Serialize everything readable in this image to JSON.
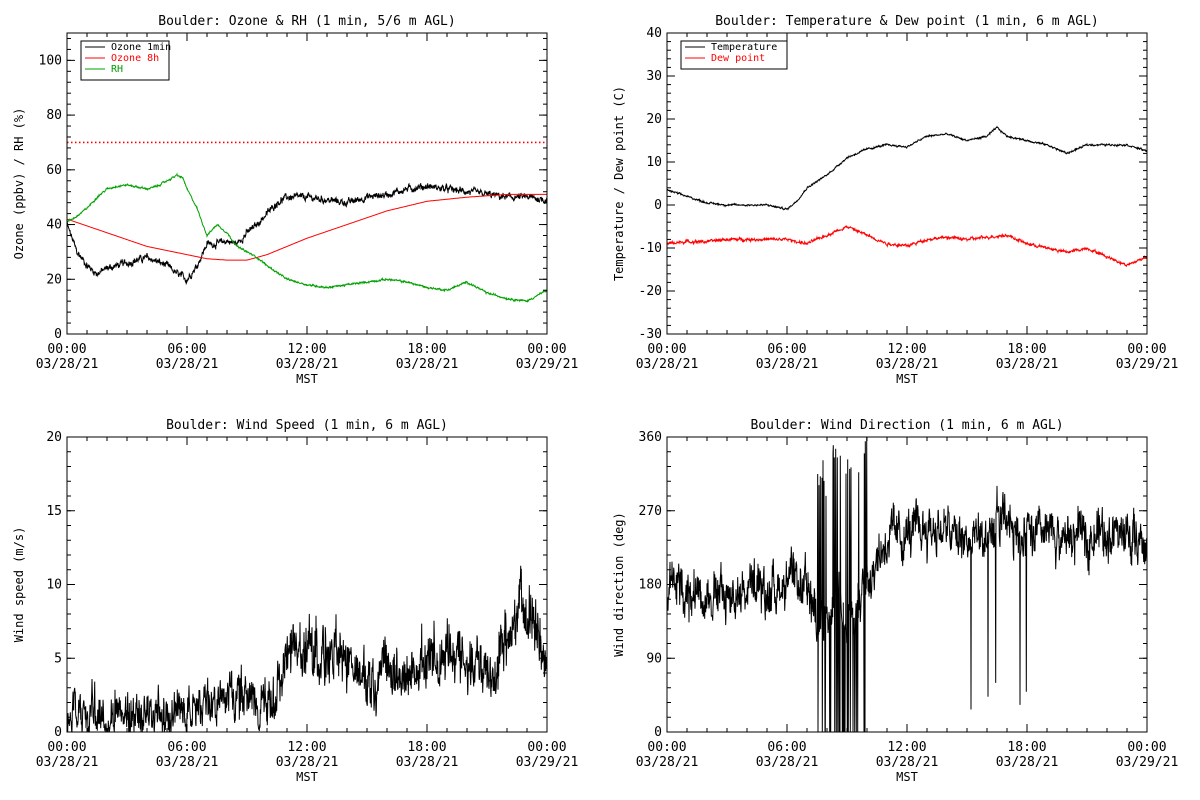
{
  "chart_data": [
    {
      "id": "ozone_rh",
      "type": "line",
      "title": "Boulder: Ozone & RH (1 min, 5/6 m AGL)",
      "ylabel": "Ozone (ppbv) / RH (%)",
      "xlabel": "MST",
      "ylim": [
        0,
        110
      ],
      "yticks": [
        "0",
        "20",
        "40",
        "60",
        "80",
        "100"
      ],
      "xlim": [
        0,
        24
      ],
      "xticks": [
        {
          "time": "00:00",
          "date": "03/28/21"
        },
        {
          "time": "06:00",
          "date": "03/28/21"
        },
        {
          "time": "12:00",
          "date": "03/28/21"
        },
        {
          "time": "18:00",
          "date": "03/28/21"
        },
        {
          "time": "00:00",
          "date": "03/29/21"
        }
      ],
      "legend": "top-left",
      "reference_line": {
        "y": 70,
        "style": "dotted",
        "color": "#ff0000"
      },
      "series": [
        {
          "name": "Ozone 1min",
          "color": "#000000",
          "noise": 1.5,
          "x": [
            0,
            0.5,
            1,
            1.5,
            2,
            3,
            4,
            5,
            5.5,
            6,
            6.5,
            7,
            7.5,
            8,
            8.5,
            9,
            9.5,
            10,
            10.5,
            11,
            12,
            13,
            14,
            15,
            16,
            17,
            18,
            19,
            20,
            21,
            22,
            23,
            24
          ],
          "y": [
            40,
            30,
            25,
            22,
            24,
            26,
            28,
            25,
            22,
            20,
            25,
            33,
            33,
            34,
            33,
            37,
            40,
            44,
            48,
            50,
            50,
            49,
            48,
            50,
            51,
            53,
            54,
            53,
            52,
            51,
            50,
            50,
            49
          ]
        },
        {
          "name": "Ozone 8h",
          "color": "#ff0000",
          "noise": 0,
          "x": [
            0,
            2,
            4,
            6,
            7,
            8,
            9,
            10,
            12,
            14,
            16,
            18,
            20,
            22,
            24
          ],
          "y": [
            42,
            37,
            32,
            29,
            27.5,
            27,
            27,
            29,
            35,
            40,
            45,
            48.5,
            50,
            51,
            51
          ]
        },
        {
          "name": "RH",
          "color": "#00a000",
          "noise": 0.4,
          "x": [
            0,
            0.5,
            1,
            1.5,
            2,
            2.5,
            3,
            4,
            4.5,
            5,
            5.5,
            5.8,
            6,
            6.5,
            7,
            7.5,
            8,
            8.5,
            9,
            9.5,
            10,
            11,
            12,
            13,
            14,
            15,
            16,
            17,
            18,
            19,
            20,
            21,
            22,
            23,
            24
          ],
          "y": [
            41,
            43,
            46,
            50,
            53,
            54,
            54.5,
            53,
            54,
            56,
            58,
            57,
            53,
            46,
            36,
            40,
            37,
            32,
            30,
            28,
            25,
            20,
            18,
            17,
            18,
            19,
            20,
            19,
            17,
            16,
            19,
            15,
            13,
            12,
            16
          ]
        }
      ]
    },
    {
      "id": "temp_dew",
      "type": "line",
      "title": "Boulder: Temperature & Dew point (1 min, 6 m AGL)",
      "ylabel": "Temperature / Dew point (C)",
      "xlabel": "MST",
      "ylim": [
        -30,
        40
      ],
      "yticks": [
        "-30",
        "-20",
        "-10",
        "0",
        "10",
        "20",
        "30",
        "40"
      ],
      "xlim": [
        0,
        24
      ],
      "xticks": [
        {
          "time": "00:00",
          "date": "03/28/21"
        },
        {
          "time": "06:00",
          "date": "03/28/21"
        },
        {
          "time": "12:00",
          "date": "03/28/21"
        },
        {
          "time": "18:00",
          "date": "03/28/21"
        },
        {
          "time": "00:00",
          "date": "03/29/21"
        }
      ],
      "legend": "top-left",
      "series": [
        {
          "name": "Temperature",
          "color": "#000000",
          "noise": 0.25,
          "x": [
            0,
            1,
            2,
            3,
            4,
            5,
            5.5,
            6,
            6.5,
            7,
            8,
            9,
            10,
            11,
            12,
            13,
            14,
            15,
            16,
            16.5,
            17,
            18,
            19,
            20,
            21,
            22,
            23,
            24
          ],
          "y": [
            3.5,
            2,
            0.5,
            0,
            0,
            0,
            -0.5,
            -1,
            1,
            4,
            7,
            11,
            13,
            14,
            13.5,
            16,
            16.5,
            15,
            16,
            18,
            16,
            15,
            14,
            12,
            14,
            14,
            14,
            12.5
          ]
        },
        {
          "name": "Dew point",
          "color": "#ff0000",
          "noise": 0.4,
          "x": [
            0,
            1,
            2,
            3,
            4,
            5,
            6,
            7,
            8,
            9,
            10,
            11,
            12,
            13,
            14,
            15,
            16,
            17,
            18,
            19,
            20,
            21,
            22,
            23,
            24
          ],
          "y": [
            -9,
            -8.5,
            -8.5,
            -8,
            -8,
            -8,
            -8,
            -9,
            -7,
            -5,
            -7,
            -9,
            -9.5,
            -8,
            -7.5,
            -8,
            -7.5,
            -7,
            -9,
            -10,
            -11,
            -10,
            -12,
            -14,
            -12
          ]
        }
      ]
    },
    {
      "id": "wind_speed",
      "type": "line",
      "title": "Boulder: Wind Speed (1 min, 6 m AGL)",
      "ylabel": "Wind speed (m/s)",
      "xlabel": "MST",
      "ylim": [
        0,
        20
      ],
      "yticks": [
        "0",
        "5",
        "10",
        "15",
        "20"
      ],
      "xlim": [
        0,
        24
      ],
      "xticks": [
        {
          "time": "00:00",
          "date": "03/28/21"
        },
        {
          "time": "06:00",
          "date": "03/28/21"
        },
        {
          "time": "12:00",
          "date": "03/28/21"
        },
        {
          "time": "18:00",
          "date": "03/28/21"
        },
        {
          "time": "00:00",
          "date": "03/29/21"
        }
      ],
      "series": [
        {
          "name": "",
          "color": "#000000",
          "noise": 1.8,
          "x": [
            0,
            2,
            4,
            6,
            7,
            8,
            9,
            10,
            10.5,
            11,
            11.5,
            12,
            13,
            14,
            15,
            16,
            17,
            18,
            19,
            20,
            21,
            22,
            22.5,
            23,
            23.5,
            24
          ],
          "y": [
            1,
            1,
            1,
            1,
            1.5,
            2,
            2,
            1.5,
            2,
            4,
            5,
            5,
            4.5,
            4,
            3,
            3,
            3,
            4,
            4.5,
            4.5,
            3,
            5,
            7,
            8,
            6,
            4
          ]
        }
      ]
    },
    {
      "id": "wind_dir",
      "type": "line",
      "title": "Boulder: Wind Direction (1 min, 6 m AGL)",
      "ylabel": "Wind direction (deg)",
      "xlabel": "MST",
      "ylim": [
        0,
        360
      ],
      "yticks": [
        "0",
        "90",
        "180",
        "270",
        "360"
      ],
      "xlim": [
        0,
        24
      ],
      "xticks": [
        {
          "time": "00:00",
          "date": "03/28/21"
        },
        {
          "time": "06:00",
          "date": "03/28/21"
        },
        {
          "time": "12:00",
          "date": "03/28/21"
        },
        {
          "time": "18:00",
          "date": "03/28/21"
        },
        {
          "time": "00:00",
          "date": "03/29/21"
        }
      ],
      "series": [
        {
          "name": "",
          "color": "#000000",
          "noise": 35,
          "x": [
            0,
            1,
            2,
            3,
            4,
            5,
            6,
            7,
            7.5,
            8,
            8.5,
            9,
            9.5,
            10,
            11,
            12,
            13,
            14,
            15,
            16,
            17,
            18,
            19,
            20,
            21,
            22,
            23,
            24
          ],
          "y": [
            180,
            175,
            170,
            165,
            175,
            170,
            185,
            170,
            150,
            120,
            160,
            140,
            150,
            190,
            235,
            240,
            250,
            245,
            230,
            240,
            260,
            235,
            240,
            235,
            240,
            245,
            240,
            225
          ]
        }
      ]
    }
  ]
}
